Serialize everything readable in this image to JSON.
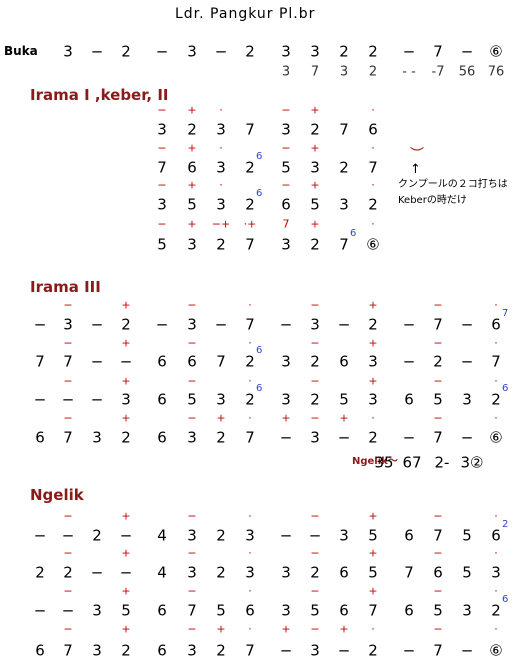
{
  "title": "Ldr. Pangkur  Pl.br",
  "buka": {
    "label": "Buka",
    "notes": [
      null,
      "3",
      "−",
      "2",
      "−",
      "3",
      "−",
      "2",
      "3",
      "3",
      "2",
      "2",
      "−",
      "7",
      "−",
      "⑥"
    ],
    "sub": [
      null,
      null,
      null,
      null,
      null,
      null,
      null,
      null,
      "3",
      "7",
      "3",
      "2",
      "- -",
      "-7",
      "56",
      "76"
    ]
  },
  "sections": [
    {
      "heading": "Irama I ,keber, II",
      "offset": 4,
      "rows": [
        {
          "marks": [
            "−",
            "+",
            "·",
            null,
            "−",
            "+",
            null,
            "·"
          ],
          "notes": [
            "3",
            "2",
            "3",
            "7",
            "3",
            "2",
            "7",
            "6"
          ]
        },
        {
          "marks": [
            "−",
            "+",
            "·",
            null,
            "−",
            "+",
            null,
            "·"
          ],
          "notes": [
            "7",
            "6",
            "3",
            {
              "note": "2",
              "upper": "6"
            },
            "5",
            "3",
            "2",
            "7"
          ]
        },
        {
          "marks": [
            "−",
            "+",
            "·",
            null,
            "−",
            "+",
            null,
            "·"
          ],
          "notes": [
            "3",
            "5",
            "3",
            {
              "note": "2",
              "upper": "6"
            },
            "6",
            "5",
            "3",
            "2"
          ]
        },
        {
          "marks": [
            "−",
            "+",
            "−+",
            "·+",
            "7",
            "+",
            null,
            "·"
          ],
          "notes": [
            "5",
            "3",
            "2",
            "7",
            "3",
            "2",
            {
              "note": "7",
              "upper": "6"
            },
            "⑥"
          ]
        }
      ]
    },
    {
      "heading": "Irama III",
      "offset": 0,
      "rows": [
        {
          "marks": [
            null,
            "−",
            null,
            "+",
            null,
            "−",
            null,
            "·",
            null,
            "−",
            null,
            "+",
            null,
            "−",
            null,
            "·"
          ],
          "notes": [
            "−",
            "3",
            "−",
            "2",
            "−",
            "3",
            "−",
            "7",
            "−",
            "3",
            "−",
            "2",
            "−",
            "7",
            "−",
            {
              "note": "6",
              "upper": "7"
            }
          ]
        },
        {
          "marks": [
            null,
            "−",
            null,
            "+",
            null,
            "−",
            null,
            "·",
            null,
            "−",
            null,
            "+",
            null,
            "−",
            null,
            "·"
          ],
          "notes": [
            "7",
            "7",
            "−",
            "−",
            "6",
            "6",
            "7",
            {
              "note": "2",
              "upper": "6"
            },
            "3",
            "2",
            "6",
            "3",
            "−",
            "2",
            "−",
            "7"
          ]
        },
        {
          "marks": [
            null,
            "−",
            null,
            "+",
            null,
            "−",
            null,
            "·",
            null,
            "−",
            null,
            "+",
            null,
            "−",
            null,
            "·"
          ],
          "notes": [
            "−",
            "−",
            "−",
            "3",
            "6",
            "5",
            "3",
            {
              "note": "2",
              "upper": "6"
            },
            "3",
            "2",
            "5",
            "3",
            "6",
            "5",
            "3",
            {
              "note": "2",
              "upper": "6"
            }
          ]
        },
        {
          "marks": [
            null,
            "−",
            null,
            "+",
            null,
            "−",
            "+",
            "·",
            "+",
            "−",
            "+",
            "·",
            null,
            "−",
            null,
            "·"
          ],
          "notes": [
            "6",
            "7",
            "3",
            "2",
            "6",
            "3",
            "2",
            "7",
            "−",
            "3",
            "−",
            "2",
            "−",
            "7",
            "−",
            "⑥"
          ]
        }
      ]
    },
    {
      "heading": "Ngelik",
      "offset": 0,
      "rows": [
        {
          "marks": [
            null,
            "−",
            null,
            "+",
            null,
            "−",
            null,
            "·",
            null,
            "−",
            null,
            "+",
            null,
            "−",
            null,
            "·"
          ],
          "notes": [
            "−",
            "−",
            "2",
            "−",
            "4",
            "3",
            "2",
            "3",
            "−",
            "−",
            "3",
            "5",
            "6",
            "7",
            "5",
            {
              "note": "6",
              "upper": "2"
            }
          ]
        },
        {
          "marks": [
            null,
            "−",
            null,
            "+",
            null,
            "−",
            null,
            "·",
            null,
            "−",
            null,
            "+",
            null,
            "−",
            null,
            "·"
          ],
          "notes": [
            "2",
            "2",
            "−",
            "−",
            "4",
            "3",
            "2",
            "3",
            "3",
            "2",
            "6",
            "5",
            "7",
            "6",
            "5",
            "3"
          ]
        },
        {
          "marks": [
            null,
            "−",
            null,
            "+",
            null,
            "−",
            null,
            "·",
            null,
            "−",
            null,
            "+",
            null,
            "−",
            null,
            "·"
          ],
          "notes": [
            "−",
            "−",
            "3",
            "5",
            "6",
            "7",
            "5",
            "6",
            "3",
            "5",
            "6",
            "7",
            "6",
            "5",
            "3",
            {
              "note": "2",
              "upper": "6"
            }
          ]
        },
        {
          "marks": [
            null,
            "−",
            null,
            "+",
            null,
            "−",
            "+",
            "·",
            "+",
            "−",
            "+",
            "·",
            null,
            "−",
            null,
            "·"
          ],
          "notes": [
            "6",
            "7",
            "3",
            "2",
            "6",
            "3",
            "2",
            "7",
            "−",
            "3",
            "−",
            "2",
            "−",
            "7",
            "−",
            "⑥"
          ]
        }
      ]
    }
  ],
  "side_note": {
    "mark": "︶",
    "arrow": "↑",
    "lines": [
      "クンプールの２コ打ちは",
      "Keberの時だけ"
    ]
  },
  "ngelik_line": {
    "label": "Ngelik〜",
    "items": [
      "35",
      "67",
      "2-",
      "3②"
    ]
  }
}
